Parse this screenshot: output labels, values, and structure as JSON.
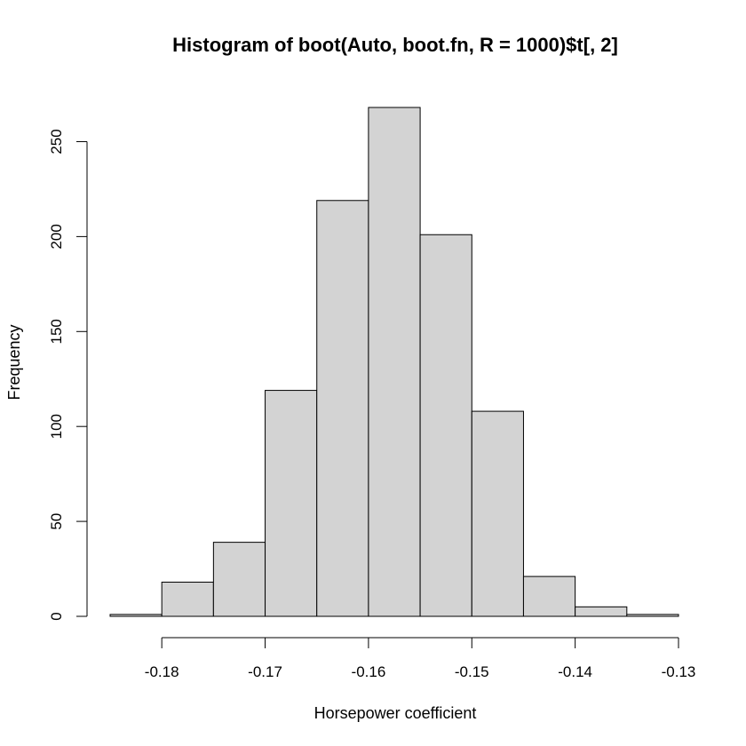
{
  "chart_data": {
    "type": "bar",
    "title": "Histogram of boot(Auto, boot.fn, R = 1000)$t[, 2]",
    "xlabel": "Horsepower coefficient",
    "ylabel": "Frequency",
    "bin_edges": [
      -0.185,
      -0.18,
      -0.175,
      -0.17,
      -0.165,
      -0.16,
      -0.155,
      -0.15,
      -0.145,
      -0.14,
      -0.135,
      -0.13
    ],
    "values": [
      1,
      18,
      39,
      119,
      219,
      268,
      201,
      108,
      21,
      5,
      1
    ],
    "x_ticks": [
      -0.18,
      -0.17,
      -0.16,
      -0.15,
      -0.14,
      -0.13
    ],
    "x_tick_labels": [
      "-0.18",
      "-0.17",
      "-0.16",
      "-0.15",
      "-0.14",
      "-0.13"
    ],
    "y_ticks": [
      0,
      50,
      100,
      150,
      200,
      250
    ],
    "y_tick_labels": [
      "0",
      "50",
      "100",
      "150",
      "200",
      "250"
    ],
    "xlim": [
      -0.185,
      -0.13
    ],
    "ylim": [
      0,
      268
    ],
    "bar_color": "#d3d3d3",
    "grid": false
  }
}
